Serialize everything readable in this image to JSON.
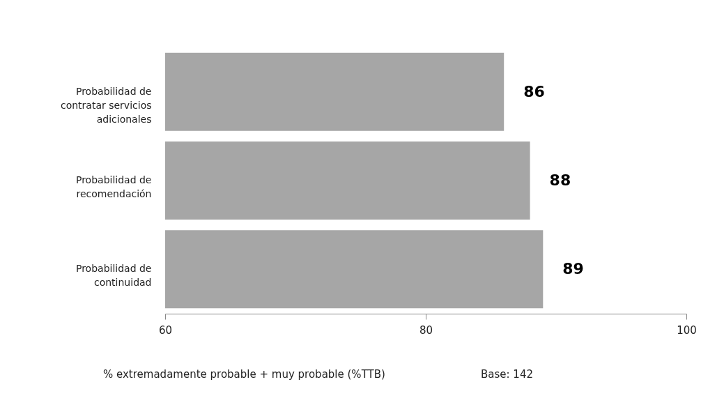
{
  "chart_data": {
    "type": "bar",
    "orientation": "horizontal",
    "categories": [
      "Probabilidad de contratar servicios adicionales",
      "Probabilidad de recomendación",
      "Probabilidad de continuidad"
    ],
    "values": [
      86,
      88,
      89
    ],
    "color": "#a6a6a6",
    "xlim": [
      60,
      100
    ],
    "xticks": [
      60,
      80,
      100
    ],
    "grid": false,
    "data_labels": true,
    "annotations": [
      "% extremadamente probable + muy probable (%TTB)",
      "Base: 142"
    ]
  }
}
